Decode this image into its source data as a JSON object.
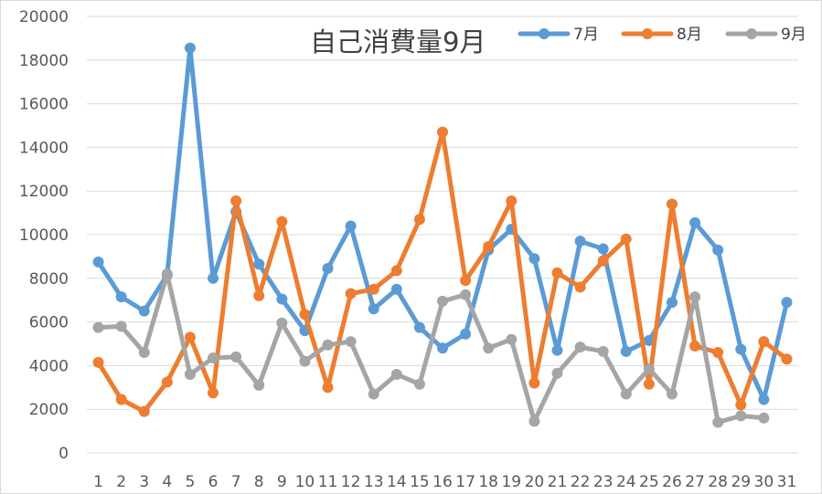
{
  "chart_data": {
    "type": "line",
    "title": "自己消費量9月",
    "xlabel": "",
    "ylabel": "",
    "ylim": [
      0,
      20000
    ],
    "yticks": [
      0,
      2000,
      4000,
      6000,
      8000,
      10000,
      12000,
      14000,
      16000,
      18000,
      20000
    ],
    "grid": true,
    "legend_position": "top-right",
    "x": [
      1,
      2,
      3,
      4,
      5,
      6,
      7,
      8,
      9,
      10,
      11,
      12,
      13,
      14,
      15,
      16,
      17,
      18,
      19,
      20,
      21,
      22,
      23,
      24,
      25,
      26,
      27,
      28,
      29,
      30,
      31
    ],
    "series": [
      {
        "name": "7月",
        "color": "#5b9bd5",
        "values": [
          8750,
          7150,
          6500,
          8150,
          18550,
          8000,
          11050,
          8650,
          7050,
          5600,
          8450,
          10400,
          6600,
          7500,
          5750,
          4800,
          5450,
          9300,
          10250,
          8900,
          4700,
          9700,
          9350,
          4650,
          5150,
          6900,
          10550,
          9300,
          4750,
          2450,
          6900
        ]
      },
      {
        "name": "8月",
        "color": "#ed7d31",
        "values": [
          4150,
          2450,
          1900,
          3250,
          5300,
          2750,
          11550,
          7200,
          10600,
          6350,
          3000,
          7300,
          7500,
          8350,
          10700,
          14700,
          7900,
          9450,
          11550,
          3200,
          8250,
          7600,
          8800,
          9800,
          3150,
          11400,
          4900,
          4600,
          2200,
          5100,
          4300
        ]
      },
      {
        "name": "9月",
        "color": "#a5a5a5",
        "values": [
          5750,
          5800,
          4600,
          8200,
          3600,
          4350,
          4400,
          3100,
          5950,
          4200,
          4950,
          5100,
          2700,
          3600,
          3150,
          6950,
          7250,
          4800,
          5200,
          1450,
          3650,
          4850,
          4650,
          2700,
          3850,
          2700,
          7150,
          1400,
          1700,
          1600,
          null
        ]
      }
    ]
  }
}
